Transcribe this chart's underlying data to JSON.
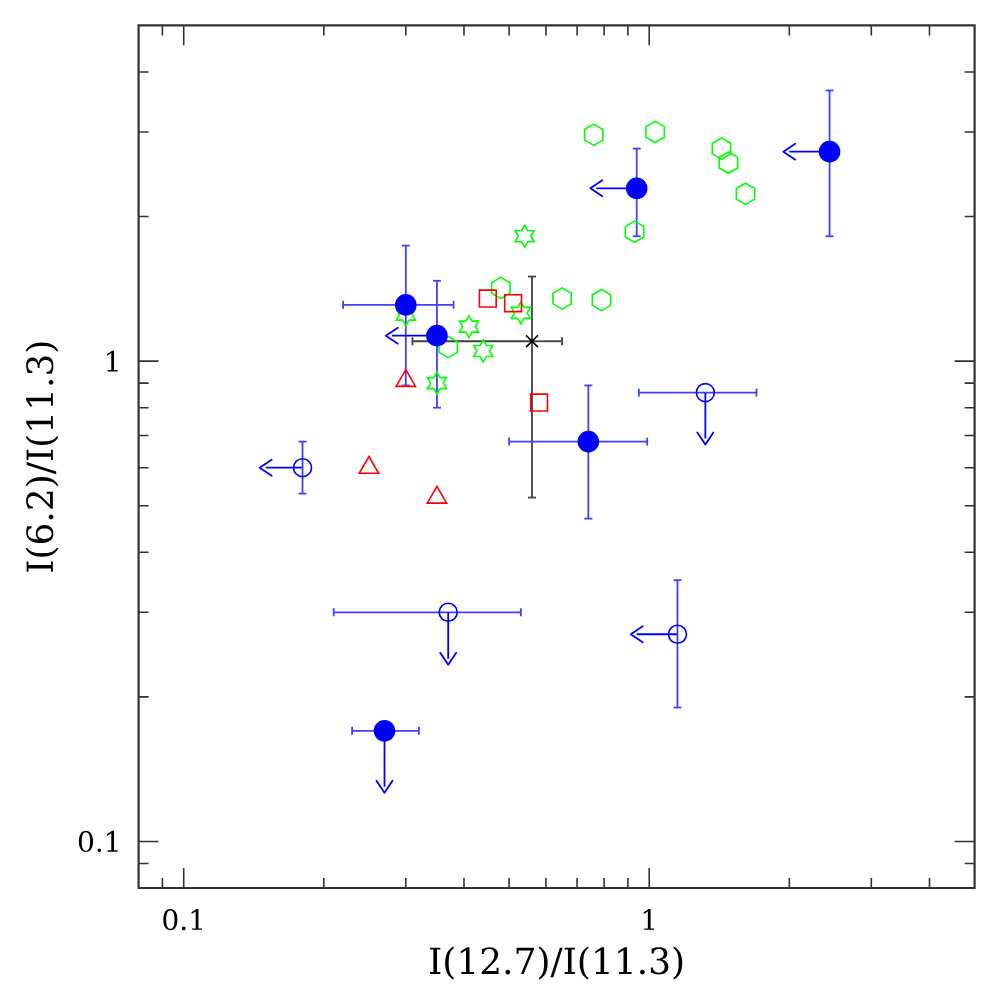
{
  "chart_data": {
    "type": "scatter",
    "xlabel": "I(12.7)/I(11.3)",
    "ylabel": "I(6.2)/I(11.3)",
    "log": "xy",
    "xlim": [
      0.08,
      5
    ],
    "ylim": [
      0.08,
      5
    ],
    "xticks": [
      {
        "value": 0.09,
        "label": null
      },
      0.1,
      {
        "value": 0.2,
        "label": null
      },
      {
        "value": 0.3,
        "label": null
      },
      {
        "value": 0.4,
        "label": null
      },
      {
        "value": 0.5,
        "label": null
      },
      {
        "value": 0.6,
        "label": null
      },
      {
        "value": 0.7,
        "label": null
      },
      {
        "value": 0.8,
        "label": null
      },
      {
        "value": 0.9,
        "label": null
      },
      1,
      {
        "value": 2,
        "label": null
      },
      {
        "value": 3,
        "label": null
      },
      {
        "value": 4,
        "label": null
      }
    ],
    "yticks": [
      {
        "value": 0.09,
        "label": null
      },
      0.1,
      {
        "value": 0.2,
        "label": null
      },
      {
        "value": 0.3,
        "label": null
      },
      {
        "value": 0.4,
        "label": null
      },
      {
        "value": 0.5,
        "label": null
      },
      {
        "value": 0.6,
        "label": null
      },
      {
        "value": 0.7,
        "label": null
      },
      {
        "value": 0.8,
        "label": null
      },
      {
        "value": 0.9,
        "label": null
      },
      1,
      {
        "value": 2,
        "label": null
      },
      {
        "value": 3,
        "label": null
      },
      {
        "value": 4,
        "label": null
      }
    ],
    "series": [
      {
        "color": "#00ff00",
        "x": [
          0.76,
          1.03,
          1.43,
          1.48,
          1.61,
          0.93,
          0.65,
          0.79,
          0.48,
          0.37
        ],
        "values": [
          2.96,
          3.0,
          2.77,
          2.59,
          2.23,
          1.86,
          1.35,
          1.34,
          1.42,
          1.07
        ]
      },
      {
        "color": "#00ff00",
        "x": [
          0.54,
          0.41,
          0.44,
          0.35,
          0.3,
          0.53
        ],
        "values": [
          1.82,
          1.18,
          1.05,
          0.9,
          1.25,
          1.26
        ]
      },
      {
        "color": "#ff0000",
        "marker": "square",
        "x": [
          0.45,
          0.51,
          0.58
        ],
        "values": [
          1.35,
          1.32,
          0.82
        ]
      },
      {
        "color": "#ff0000",
        "marker": "triangle",
        "x": [
          0.3,
          0.25,
          0.35
        ],
        "values": [
          0.91,
          0.6,
          0.52
        ]
      },
      {
        "color": "#000000",
        "marker": "cross",
        "x": [
          0.56
        ],
        "values": [
          1.1
        ],
        "xerrors": [
          [
            0.31,
            0.65
          ]
        ],
        "errors": [
          [
            0.52,
            1.5
          ]
        ]
      },
      {
        "color": "#0000ff",
        "marker": "open circle",
        "x": [
          0.18,
          0.37,
          1.32,
          1.15
        ],
        "values": [
          0.6,
          0.3,
          0.86,
          0.27
        ],
        "xerrors": [
          [
            0.15,
            0.18
          ],
          [
            0.21,
            0.53
          ],
          [
            0.95,
            1.7
          ],
          [
            0.94,
            1.15
          ]
        ],
        "errors": [
          [
            0.53,
            0.68
          ],
          [
            0.24,
            0.3
          ],
          [
            0.69,
            0.86
          ],
          [
            0.19,
            0.35
          ]
        ]
      },
      {
        "color": "#0000ff",
        "marker": "circle",
        "x": [
          0.3,
          0.35,
          0.74,
          0.94,
          2.44,
          0.27
        ],
        "values": [
          1.31,
          1.13,
          0.68,
          2.29,
          2.73,
          0.17
        ],
        "xerrors": [
          [
            0.22,
            0.38
          ],
          [
            0.28,
            0.35
          ],
          [
            0.5,
            0.99
          ],
          [
            0.77,
            0.94
          ],
          [
            2.0,
            2.44
          ],
          [
            0.23,
            0.32
          ]
        ],
        "errors": [
          [
            0.89,
            1.74
          ],
          [
            0.8,
            1.47
          ],
          [
            0.47,
            0.89
          ],
          [
            1.82,
            2.77
          ],
          [
            1.82,
            3.66
          ],
          [
            0.13,
            0.17
          ]
        ]
      }
    ]
  }
}
